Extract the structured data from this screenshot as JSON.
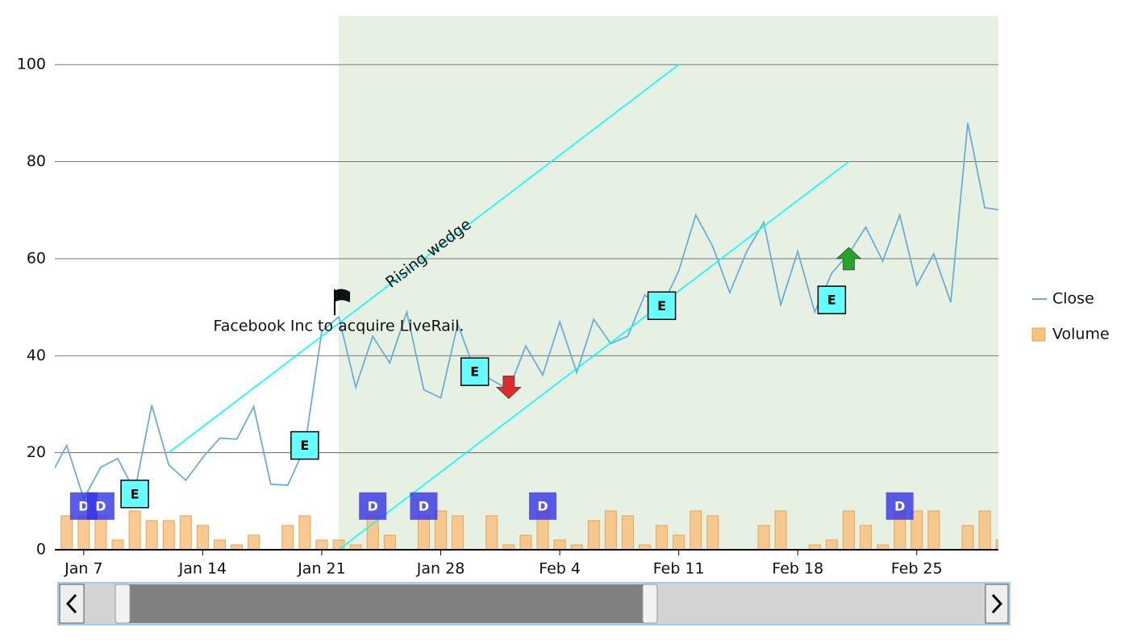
{
  "chart_data": {
    "type": "line",
    "x": [
      5,
      6,
      7,
      8,
      9,
      10,
      11,
      12,
      13,
      14,
      15,
      16,
      17,
      18,
      19,
      20,
      21,
      22,
      23,
      24,
      25,
      26,
      27,
      28,
      29,
      30,
      31,
      32,
      33,
      34,
      35,
      36,
      37,
      38,
      39,
      40,
      41,
      42,
      43,
      44,
      45,
      46,
      47,
      48,
      49,
      50,
      51,
      52,
      53,
      54,
      55,
      56,
      57,
      58,
      59,
      60,
      61
    ],
    "series": [
      {
        "name": "Close",
        "color": "#6aaed6",
        "values": [
          15,
          21.5,
          10.5,
          17,
          18.8,
          12,
          29.8,
          17.5,
          14.3,
          19,
          23,
          22.8,
          29.5,
          13.5,
          13.3,
          21,
          45,
          48,
          33.5,
          44,
          38.5,
          49,
          33,
          31.3,
          46.5,
          37,
          35,
          33,
          42,
          36,
          47,
          36.5,
          47.5,
          42.5,
          44,
          52.5,
          50,
          57.5,
          69,
          62.5,
          53,
          61.5,
          67.5,
          50.5,
          61.5,
          49,
          57,
          61,
          66.5,
          59.5,
          69,
          54.5,
          61,
          51,
          88,
          70.5,
          70
        ]
      },
      {
        "name": "Volume",
        "type": "bar",
        "color": "#f9c17f",
        "values": [
          null,
          7,
          7,
          7,
          2,
          8,
          6,
          6,
          7,
          5,
          2,
          1,
          3,
          null,
          5,
          7,
          2,
          2,
          1,
          7,
          3,
          null,
          7,
          8,
          7,
          null,
          7,
          1,
          3,
          8,
          2,
          1,
          6,
          8,
          7,
          1,
          5,
          3,
          8,
          7,
          null,
          null,
          5,
          8,
          null,
          1,
          2,
          8,
          5,
          1,
          8,
          8,
          8,
          null,
          5,
          8,
          2
        ]
      }
    ],
    "xlim": [
      5.3,
      60.8
    ],
    "xticks": [
      {
        "value": 7,
        "label": "Jan 7"
      },
      {
        "value": 14,
        "label": "Jan 14"
      },
      {
        "value": 21,
        "label": "Jan 21"
      },
      {
        "value": 28,
        "label": "Jan 28"
      },
      {
        "value": 35,
        "label": "Feb 4"
      },
      {
        "value": 42,
        "label": "Feb 11"
      },
      {
        "value": 49,
        "label": "Feb 18"
      },
      {
        "value": 56,
        "label": "Feb 25"
      }
    ],
    "ylim": [
      0,
      110
    ],
    "yticks": [
      0,
      20,
      40,
      60,
      80,
      100
    ],
    "grid": true,
    "legend": "right",
    "highlight_range": {
      "x": [
        22,
        60.8
      ],
      "color": "#e6f1e4"
    },
    "trend_lines": [
      {
        "x": [
          12,
          42
        ],
        "y": [
          20,
          100
        ],
        "color": "#00ffff"
      },
      {
        "x": [
          22,
          52
        ],
        "y": [
          0,
          80
        ],
        "color": "#00ffff"
      }
    ],
    "trend_label": {
      "text": "Rising wedge",
      "x": 27.3,
      "y": 61
    },
    "annotation": {
      "text": "Facebook Inc to acquire LiveRail.",
      "x": 22,
      "y": 48
    },
    "markers": [
      {
        "label": "E",
        "x": 10,
        "y": 11.5
      },
      {
        "label": "E",
        "x": 20,
        "y": 21.5
      },
      {
        "label": "E",
        "x": 30,
        "y": 36.7
      },
      {
        "label": "E",
        "x": 41,
        "y": 50.3
      },
      {
        "label": "E",
        "x": 51,
        "y": 51.5
      },
      {
        "label": "D",
        "x": 7,
        "y": 9
      },
      {
        "label": "D",
        "x": 8,
        "y": 9
      },
      {
        "label": "D",
        "x": 24,
        "y": 9
      },
      {
        "label": "D",
        "x": 27,
        "y": 9
      },
      {
        "label": "D",
        "x": 34,
        "y": 9
      },
      {
        "label": "D",
        "x": 55,
        "y": 9
      }
    ],
    "arrows": [
      {
        "direction": "down",
        "x": 32,
        "y": 33.5,
        "color": "#e02b2b"
      },
      {
        "direction": "up",
        "x": 52,
        "y": 60,
        "color": "#22a52a"
      }
    ]
  }
}
